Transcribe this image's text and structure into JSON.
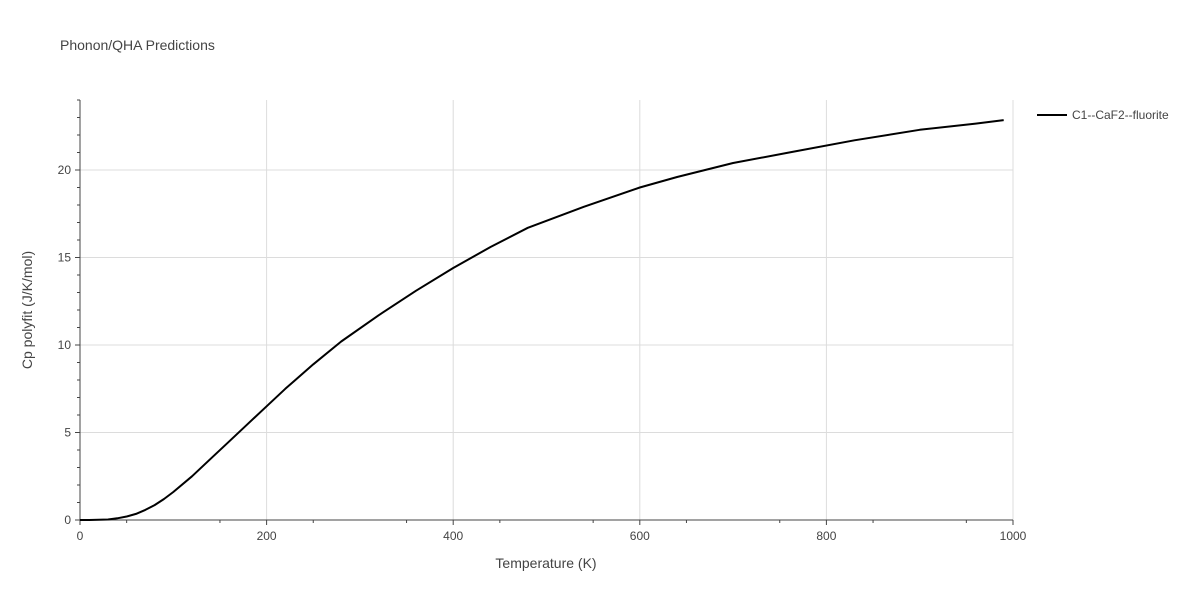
{
  "chart_data": {
    "type": "line",
    "title": "Phonon/QHA Predictions",
    "xlabel": "Temperature (K)",
    "ylabel": "Cp polyfit (J/K/mol)",
    "xlim": [
      0,
      1000
    ],
    "ylim": [
      0,
      24
    ],
    "x_ticks": [
      0,
      200,
      400,
      600,
      800,
      1000
    ],
    "x_tick_labels": [
      "0",
      "200",
      "400",
      "600",
      "800",
      "1000"
    ],
    "y_ticks": [
      0,
      5,
      10,
      15,
      20
    ],
    "y_tick_labels": [
      "0",
      "5",
      "10",
      "15",
      "20"
    ],
    "grid": true,
    "legend_position": "top-right",
    "series": [
      {
        "name": "C1--CaF2--fluorite",
        "color": "#000000",
        "x": [
          0,
          10,
          20,
          30,
          40,
          50,
          60,
          70,
          80,
          90,
          100,
          120,
          140,
          160,
          180,
          200,
          220,
          250,
          280,
          320,
          360,
          400,
          440,
          480,
          540,
          600,
          640,
          700,
          760,
          830,
          900,
          960,
          990
        ],
        "y": [
          0.0,
          0.0,
          0.01,
          0.03,
          0.1,
          0.2,
          0.35,
          0.58,
          0.85,
          1.2,
          1.6,
          2.5,
          3.5,
          4.5,
          5.5,
          6.5,
          7.5,
          8.9,
          10.2,
          11.7,
          13.1,
          14.4,
          15.6,
          16.7,
          17.9,
          19.0,
          19.6,
          20.4,
          21.0,
          21.7,
          22.3,
          22.65,
          22.85
        ]
      }
    ]
  }
}
